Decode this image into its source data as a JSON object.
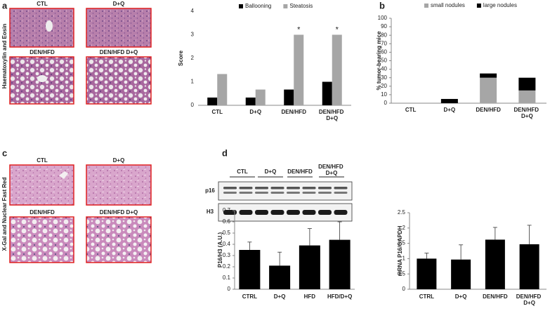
{
  "panels": [
    "a",
    "b",
    "c",
    "d"
  ],
  "histology": {
    "he": {
      "label": "Haematoxylin and Eosin",
      "images": [
        "CTL",
        "D+Q",
        "DEN/HFD",
        "DEN/HFD D+Q"
      ]
    },
    "xgal": {
      "label": "X-Gal and Nuclear Fast Red",
      "images": [
        "CTL",
        "D+Q",
        "DEN/HFD",
        "DEN/HFD D+Q"
      ]
    }
  },
  "blot": {
    "groups": [
      "CTL",
      "D+Q",
      "DEN/HFD",
      "DEN/HFD D+Q"
    ],
    "rows": [
      "p16",
      "H3"
    ]
  },
  "chart_data": [
    {
      "type": "bar",
      "ylabel": "Score",
      "categories": [
        "CTL",
        "D+Q",
        "DEN/HFD",
        "DEN/HFD D+Q"
      ],
      "series": [
        {
          "name": "Ballooning",
          "color": "#000000",
          "values": [
            0.33,
            0.33,
            0.67,
            1.0
          ]
        },
        {
          "name": "Steatosis",
          "color": "#a6a6a6",
          "values": [
            1.33,
            0.67,
            3.0,
            3.0
          ]
        }
      ],
      "annotations": [
        {
          "category": "DEN/HFD",
          "text": "*"
        },
        {
          "category": "DEN/HFD D+Q",
          "text": "*"
        }
      ],
      "ylim": [
        0,
        4
      ],
      "yticks": [
        0,
        1,
        2,
        3,
        4
      ],
      "legend": "top",
      "grid": false
    },
    {
      "type": "bar",
      "stacked": true,
      "ylabel": "% tumor-bearing mice",
      "categories": [
        "CTL",
        "D+Q",
        "DEN/HFD",
        "DEN/HFD D+Q"
      ],
      "series": [
        {
          "name": "small nodules",
          "color": "#a6a6a6",
          "values": [
            0,
            0,
            30,
            15
          ]
        },
        {
          "name": "large nodules",
          "color": "#000000",
          "values": [
            0,
            5,
            5,
            15
          ]
        }
      ],
      "ylim": [
        0,
        100
      ],
      "yticks": [
        0,
        10,
        20,
        30,
        40,
        50,
        60,
        70,
        80,
        90,
        100
      ],
      "legend": "top",
      "grid": false
    },
    {
      "type": "bar",
      "ylabel": "P16/H3  (A.U.)",
      "categories": [
        "CTRL",
        "D+Q",
        "HFD",
        "HFD/D+Q"
      ],
      "series": [
        {
          "color": "#000000",
          "values": [
            0.35,
            0.21,
            0.39,
            0.44
          ],
          "errors": [
            0.07,
            0.12,
            0.15,
            0.16
          ]
        }
      ],
      "ylim": [
        0,
        0.7
      ],
      "yticks": [
        0,
        0.1,
        0.2,
        0.3,
        0.4,
        0.5,
        0.6,
        0.7
      ],
      "grid": false
    },
    {
      "type": "bar",
      "ylabel": "mRNA P16/GAPDH",
      "categories": [
        "CTRL",
        "D+Q",
        "DEN/HFD",
        "DEN/HFD D+Q"
      ],
      "series": [
        {
          "color": "#000000",
          "values": [
            1.0,
            0.97,
            1.62,
            1.47
          ],
          "errors": [
            0.18,
            0.48,
            0.4,
            0.62
          ]
        }
      ],
      "ylim": [
        0,
        2.5
      ],
      "yticks": [
        0,
        0.5,
        1,
        1.5,
        2,
        2.5
      ],
      "grid": false
    }
  ]
}
